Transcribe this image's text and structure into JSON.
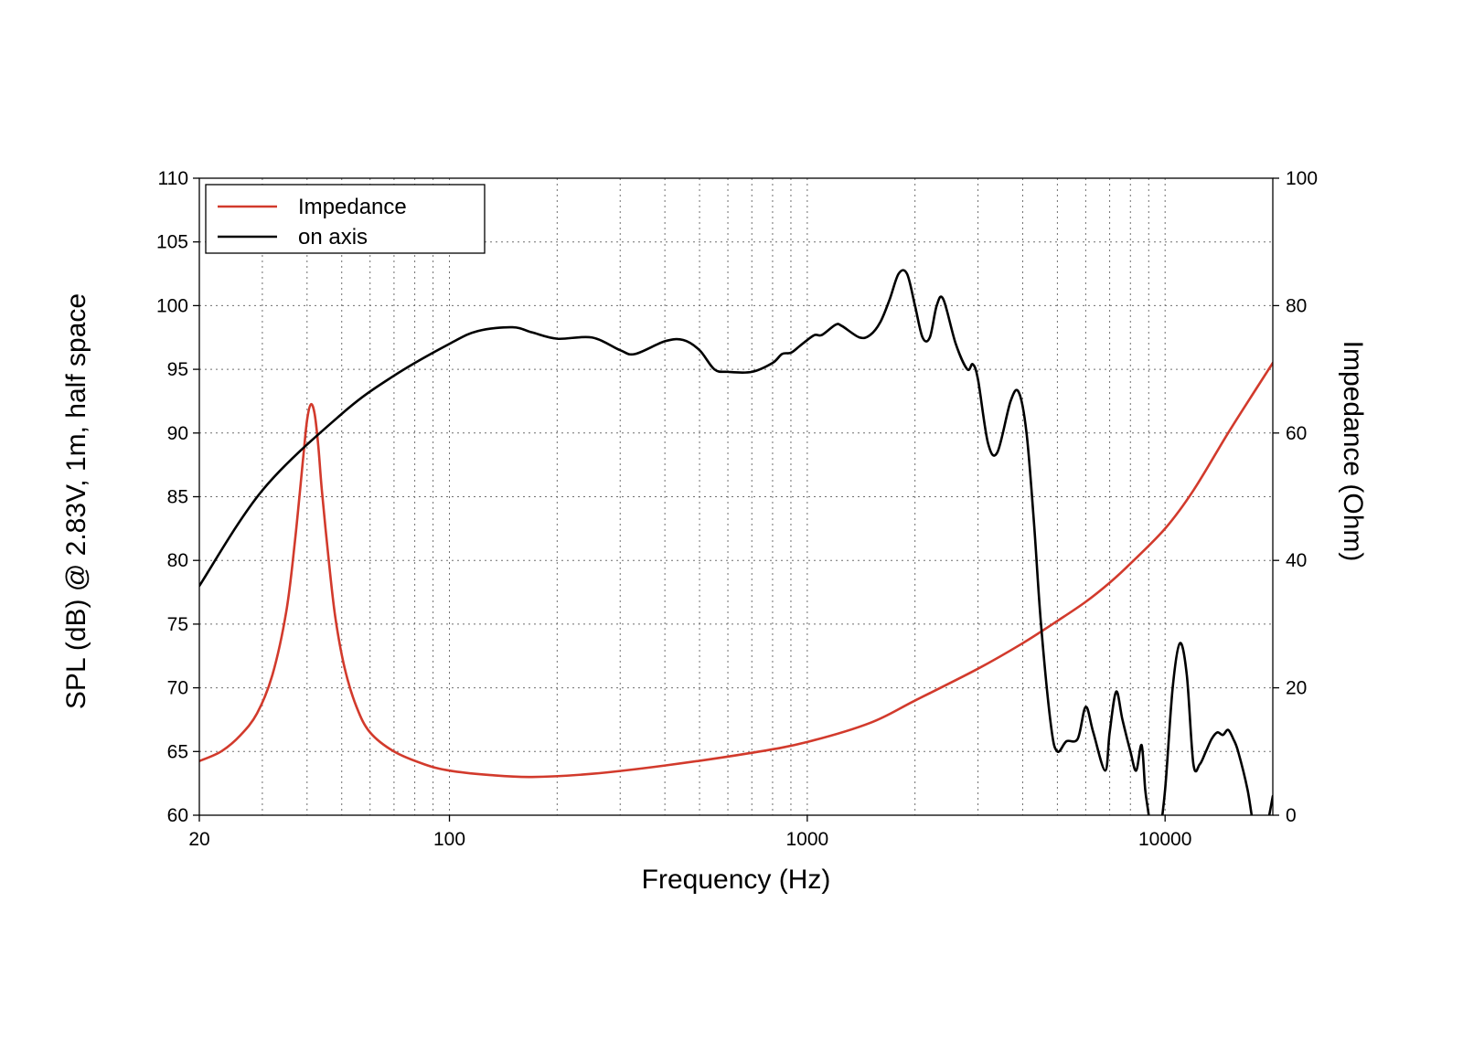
{
  "chart_data": {
    "type": "line",
    "xlabel": "Frequency (Hz)",
    "ylabel": "SPL (dB) @ 2.83V, 1m, half space",
    "y2label": "Impedance (Ohm)",
    "x_scale": "log",
    "xlim": [
      20,
      20000
    ],
    "ylim": [
      60,
      110
    ],
    "y2lim": [
      0,
      100
    ],
    "x_tick_labels": [
      "20",
      "100",
      "1000",
      "10000"
    ],
    "x_tick_values": [
      20,
      100,
      1000,
      10000
    ],
    "y_tick_labels": [
      "60",
      "65",
      "70",
      "75",
      "80",
      "85",
      "90",
      "95",
      "100",
      "105",
      "110"
    ],
    "y2_tick_labels": [
      "0",
      "20",
      "40",
      "60",
      "80",
      "100"
    ],
    "grid": true,
    "legend": {
      "position": "top-left",
      "entries": [
        "Impedance",
        "on axis"
      ]
    },
    "series": [
      {
        "name": "Impedance",
        "axis": "right",
        "color": "#d23a2c",
        "x": [
          20,
          23,
          26,
          29,
          32,
          35,
          37,
          39,
          40,
          41,
          42,
          43,
          44,
          46,
          48,
          51,
          55,
          60,
          70,
          85,
          100,
          130,
          170,
          250,
          400,
          700,
          1000,
          1500,
          2000,
          3000,
          4000,
          5000,
          6000,
          7000,
          8000,
          10000,
          12000,
          15000,
          18000,
          20000
        ],
        "y": [
          8.5,
          10,
          12.5,
          16,
          22,
          32,
          43,
          56,
          62,
          64.5,
          63,
          58,
          51,
          40,
          31,
          23,
          17,
          13,
          10,
          8,
          7,
          6.3,
          6,
          6.5,
          7.8,
          9.8,
          11.5,
          14.5,
          18,
          23,
          27,
          30.5,
          33.5,
          36.5,
          39.5,
          45,
          51,
          60,
          67,
          71
        ]
      },
      {
        "name": "on axis",
        "axis": "left",
        "color": "#000000",
        "x": [
          20,
          30,
          50,
          70,
          100,
          120,
          150,
          170,
          200,
          250,
          300,
          330,
          400,
          450,
          500,
          550,
          600,
          700,
          800,
          850,
          900,
          950,
          1000,
          1050,
          1100,
          1200,
          1250,
          1400,
          1500,
          1600,
          1700,
          1800,
          1900,
          2000,
          2100,
          2200,
          2300,
          2400,
          2600,
          2800,
          2900,
          3000,
          3200,
          3400,
          3700,
          3900,
          4100,
          4300,
          4500,
          4800,
          5000,
          5300,
          5700,
          6000,
          6300,
          6800,
          7000,
          7300,
          7600,
          8000,
          8300,
          8600,
          8800,
          9000,
          9300,
          9600,
          10000,
          10500,
          11000,
          11500,
          12000,
          12500,
          13000,
          13500,
          14000,
          14500,
          15000,
          15500,
          16000,
          17000,
          18000,
          19000,
          20000
        ],
        "y": [
          78,
          85.5,
          91.5,
          94.5,
          97,
          98,
          98.3,
          97.9,
          97.4,
          97.5,
          96.5,
          96.2,
          97.2,
          97.3,
          96.5,
          95,
          94.8,
          94.8,
          95.5,
          96.2,
          96.3,
          96.8,
          97.3,
          97.7,
          97.7,
          98.5,
          98.4,
          97.5,
          97.7,
          98.7,
          100.5,
          102.5,
          102.5,
          100,
          97.5,
          97.5,
          100,
          100.5,
          97,
          95,
          95.4,
          94.2,
          89.2,
          88.5,
          92.5,
          93.2,
          90,
          83,
          75,
          67,
          65,
          65.8,
          66,
          68.5,
          66.5,
          63.5,
          66.5,
          69.7,
          67.5,
          65,
          63.5,
          65.5,
          62,
          60,
          56.5,
          58,
          62,
          70,
          73.5,
          71,
          64,
          64,
          65,
          66,
          66.5,
          66.3,
          66.7,
          66,
          65,
          62,
          58,
          58.5,
          61.5
        ]
      }
    ]
  }
}
